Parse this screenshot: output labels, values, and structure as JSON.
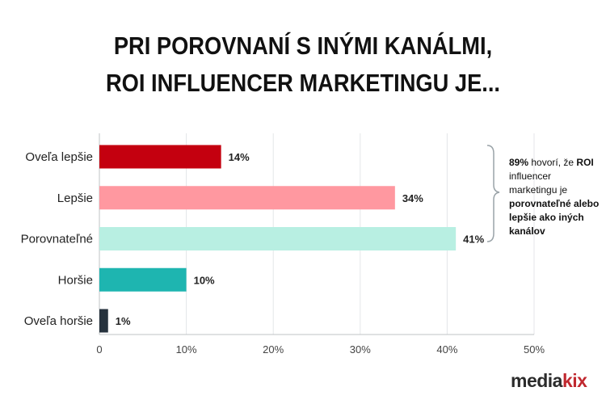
{
  "chart_data": {
    "type": "bar",
    "orientation": "horizontal",
    "title": "PRI POROVNANÍ S INÝMI KANÁLMI, ROI INFLUENCER MARKETINGU JE...",
    "title_lines": [
      "PRI POROVNANÍ S INÝMI KANÁLMI,",
      "ROI INFLUENCER MARKETINGU JE..."
    ],
    "categories": [
      "Oveľa lepšie",
      "Lepšie",
      "Porovnateľné",
      "Horšie",
      "Oveľa horšie"
    ],
    "values": [
      14,
      34,
      41,
      10,
      1
    ],
    "value_labels": [
      "14%",
      "34%",
      "41%",
      "10%",
      "1%"
    ],
    "colors": [
      "#c4000f",
      "#ff98a0",
      "#b8efe2",
      "#1eb5b0",
      "#26323d"
    ],
    "xlim": [
      0,
      50
    ],
    "xticks": [
      0,
      10,
      20,
      30,
      40,
      50
    ],
    "xtick_labels": [
      "0",
      "10%",
      "20%",
      "30%",
      "40%",
      "50%"
    ],
    "xlabel": "",
    "ylabel": "",
    "grid": "vertical",
    "annotation": {
      "segments": [
        {
          "text": "89%",
          "bold": true
        },
        {
          "text": " hovorí, že ",
          "bold": false
        },
        {
          "text": "ROI",
          "bold": true
        },
        {
          "text": " influencer marketingu je ",
          "bold": false
        },
        {
          "text": "porovnateľné alebo lepšie ako iných kanálov",
          "bold": true
        }
      ]
    }
  },
  "logo": {
    "part1": "media",
    "part2": "kix"
  }
}
